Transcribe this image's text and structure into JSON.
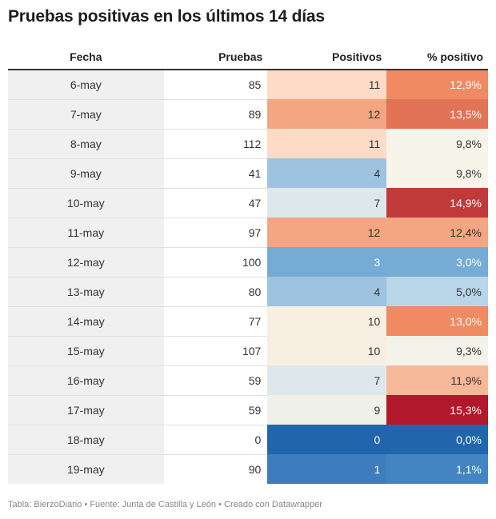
{
  "title": "Pruebas positivas en los últimos 14 días",
  "columns": [
    "Fecha",
    "Pruebas",
    "Positivos",
    "% positivo"
  ],
  "rows": [
    {
      "fecha": "6-may",
      "pruebas": "85",
      "positivos": "11",
      "pct": "12,9%",
      "pos_color": "#fddbc7",
      "pct_color": "#ef8a62",
      "pos_text": "#333333",
      "pct_text": "#ffffff"
    },
    {
      "fecha": "7-may",
      "pruebas": "89",
      "positivos": "12",
      "pct": "13,5%",
      "pos_color": "#f4a582",
      "pct_color": "#e27357",
      "pos_text": "#333333",
      "pct_text": "#ffffff"
    },
    {
      "fecha": "8-may",
      "pruebas": "112",
      "positivos": "11",
      "pct": "9,8%",
      "pos_color": "#fddbc7",
      "pct_color": "#f7f4e9",
      "pos_text": "#333333",
      "pct_text": "#333333"
    },
    {
      "fecha": "9-may",
      "pruebas": "41",
      "positivos": "4",
      "pct": "9,8%",
      "pos_color": "#9dc3e0",
      "pct_color": "#f7f4e9",
      "pos_text": "#333333",
      "pct_text": "#333333"
    },
    {
      "fecha": "10-may",
      "pruebas": "47",
      "positivos": "7",
      "pct": "14,9%",
      "pos_color": "#dde8ed",
      "pct_color": "#c13a3a",
      "pos_text": "#333333",
      "pct_text": "#ffffff"
    },
    {
      "fecha": "11-may",
      "pruebas": "97",
      "positivos": "12",
      "pct": "12,4%",
      "pos_color": "#f4a582",
      "pct_color": "#f4a582",
      "pos_text": "#333333",
      "pct_text": "#333333"
    },
    {
      "fecha": "12-may",
      "pruebas": "100",
      "positivos": "3",
      "pct": "3,0%",
      "pos_color": "#74acd5",
      "pct_color": "#74acd5",
      "pos_text": "#ffffff",
      "pct_text": "#ffffff"
    },
    {
      "fecha": "13-may",
      "pruebas": "80",
      "positivos": "4",
      "pct": "5,0%",
      "pos_color": "#9dc3e0",
      "pct_color": "#b9d5e8",
      "pos_text": "#333333",
      "pct_text": "#333333"
    },
    {
      "fecha": "14-may",
      "pruebas": "77",
      "positivos": "10",
      "pct": "13,0%",
      "pos_color": "#f8efe2",
      "pct_color": "#ef8a62",
      "pos_text": "#333333",
      "pct_text": "#ffffff"
    },
    {
      "fecha": "15-may",
      "pruebas": "107",
      "positivos": "10",
      "pct": "9,3%",
      "pos_color": "#f8efe2",
      "pct_color": "#f3f3ea",
      "pos_text": "#333333",
      "pct_text": "#333333"
    },
    {
      "fecha": "16-may",
      "pruebas": "59",
      "positivos": "7",
      "pct": "11,9%",
      "pos_color": "#dde8ed",
      "pct_color": "#f7b899",
      "pos_text": "#333333",
      "pct_text": "#333333"
    },
    {
      "fecha": "17-may",
      "pruebas": "59",
      "positivos": "9",
      "pct": "15,3%",
      "pos_color": "#eff0e8",
      "pct_color": "#b2182b",
      "pos_text": "#333333",
      "pct_text": "#ffffff"
    },
    {
      "fecha": "18-may",
      "pruebas": "0",
      "positivos": "0",
      "pct": "0,0%",
      "pos_color": "#2166ac",
      "pct_color": "#2166ac",
      "pos_text": "#ffffff",
      "pct_text": "#ffffff"
    },
    {
      "fecha": "19-may",
      "pruebas": "90",
      "positivos": "1",
      "pct": "1,1%",
      "pos_color": "#3e7cbe",
      "pct_color": "#4385c2",
      "pos_text": "#ffffff",
      "pct_text": "#ffffff"
    }
  ],
  "footer": "Tabla: BierzoDiario • Fuente: Junta de Castilla y León • Creado con Datawrapper",
  "chart_data": {
    "type": "table",
    "title": "Pruebas positivas en los últimos 14 días",
    "columns": [
      "Fecha",
      "Pruebas",
      "Positivos",
      "% positivo"
    ],
    "categories": [
      "6-may",
      "7-may",
      "8-may",
      "9-may",
      "10-may",
      "11-may",
      "12-may",
      "13-may",
      "14-may",
      "15-may",
      "16-may",
      "17-may",
      "18-may",
      "19-may"
    ],
    "series": [
      {
        "name": "Pruebas",
        "values": [
          85,
          89,
          112,
          41,
          47,
          97,
          100,
          80,
          77,
          107,
          59,
          59,
          0,
          90
        ]
      },
      {
        "name": "Positivos",
        "values": [
          11,
          12,
          11,
          4,
          7,
          12,
          3,
          4,
          10,
          10,
          7,
          9,
          0,
          1
        ]
      },
      {
        "name": "% positivo",
        "values": [
          12.9,
          13.5,
          9.8,
          9.8,
          14.9,
          12.4,
          3.0,
          5.0,
          13.0,
          9.3,
          11.9,
          15.3,
          0.0,
          1.1
        ]
      }
    ]
  }
}
